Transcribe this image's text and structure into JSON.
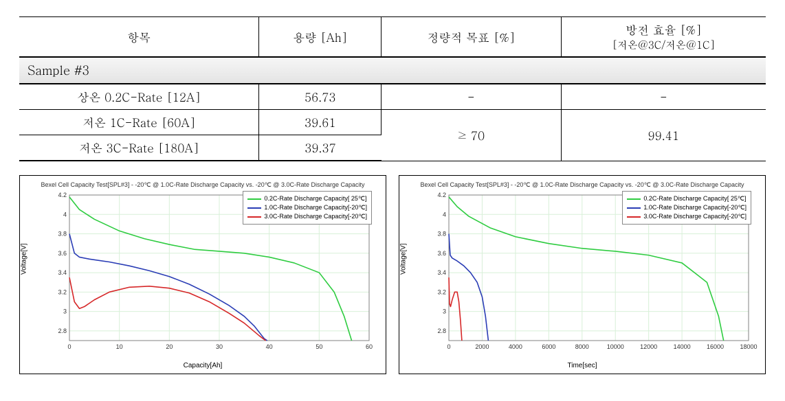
{
  "table": {
    "title": "Sample #3",
    "headers": {
      "item": "항목",
      "capacity": "용량 [Ah]",
      "target": "정량적 목표 [%]",
      "eff": "방전 효율 [%]",
      "eff_sub": "[저온@3C/저온@1C]"
    },
    "rows": [
      {
        "item": "상온 0.2C-Rate [12A]",
        "capacity": "56.73",
        "target": "-",
        "eff": "-"
      },
      {
        "item": "저온 1C-Rate [60A]",
        "capacity": "39.61"
      },
      {
        "item": "저온 3C-Rate [180A]",
        "capacity": "39.37"
      }
    ],
    "merged_target": "≥ 70",
    "merged_eff": "99.41"
  },
  "chart_common": {
    "title": "Bexel Cell Capacity Test[SPL#3] - -20℃ @ 1.0C-Rate Discharge Capacity vs. -20℃ @ 3.0C-Rate Discharge Capacity",
    "title_fontsize": 9,
    "ylabel": "Voltage[V]",
    "ylim": [
      2.7,
      4.2
    ],
    "yticks": [
      2.8,
      3.0,
      3.2,
      3.4,
      3.6,
      3.8,
      4.0,
      4.2
    ],
    "grid_color": "#d8f0d8",
    "border_color": "#808080",
    "background_color": "#ffffff",
    "line_width": 1.6,
    "legend_items": [
      {
        "label": "0.2C-Rate Discharge Capacity[ 25℃]",
        "color": "#2ecc40"
      },
      {
        "label": "1.0C-Rate Discharge Capacity[-20℃]",
        "color": "#2a3db5"
      },
      {
        "label": "3.0C-Rate Discharge Capacity[-20℃]",
        "color": "#d62728"
      }
    ]
  },
  "chart_left": {
    "xlabel": "Capacity[Ah]",
    "xlim": [
      0,
      60
    ],
    "xticks": [
      0,
      10,
      20,
      30,
      40,
      50,
      60
    ],
    "series": [
      {
        "color": "#2ecc40",
        "points": [
          [
            0,
            4.18
          ],
          [
            2,
            4.05
          ],
          [
            5,
            3.95
          ],
          [
            10,
            3.83
          ],
          [
            15,
            3.75
          ],
          [
            20,
            3.69
          ],
          [
            25,
            3.64
          ],
          [
            30,
            3.62
          ],
          [
            35,
            3.6
          ],
          [
            40,
            3.56
          ],
          [
            45,
            3.5
          ],
          [
            50,
            3.4
          ],
          [
            53,
            3.2
          ],
          [
            55,
            2.95
          ],
          [
            56.5,
            2.7
          ]
        ]
      },
      {
        "color": "#2a3db5",
        "points": [
          [
            0,
            3.8
          ],
          [
            1,
            3.6
          ],
          [
            2,
            3.56
          ],
          [
            4,
            3.54
          ],
          [
            8,
            3.51
          ],
          [
            12,
            3.47
          ],
          [
            16,
            3.42
          ],
          [
            20,
            3.36
          ],
          [
            24,
            3.28
          ],
          [
            28,
            3.18
          ],
          [
            32,
            3.06
          ],
          [
            35,
            2.95
          ],
          [
            37,
            2.85
          ],
          [
            39,
            2.72
          ],
          [
            39.6,
            2.7
          ]
        ]
      },
      {
        "color": "#d62728",
        "points": [
          [
            0,
            3.35
          ],
          [
            1,
            3.1
          ],
          [
            2,
            3.03
          ],
          [
            3,
            3.05
          ],
          [
            5,
            3.12
          ],
          [
            8,
            3.2
          ],
          [
            12,
            3.25
          ],
          [
            16,
            3.26
          ],
          [
            20,
            3.24
          ],
          [
            24,
            3.19
          ],
          [
            28,
            3.1
          ],
          [
            32,
            2.98
          ],
          [
            35,
            2.88
          ],
          [
            38,
            2.75
          ],
          [
            39.3,
            2.7
          ]
        ]
      }
    ]
  },
  "chart_right": {
    "xlabel": "Time[sec]",
    "xlim": [
      0,
      18000
    ],
    "xticks": [
      0,
      2000,
      4000,
      6000,
      8000,
      10000,
      12000,
      14000,
      16000,
      18000
    ],
    "series": [
      {
        "color": "#2ecc40",
        "points": [
          [
            0,
            4.18
          ],
          [
            500,
            4.08
          ],
          [
            1200,
            3.98
          ],
          [
            2500,
            3.86
          ],
          [
            4000,
            3.77
          ],
          [
            6000,
            3.7
          ],
          [
            8000,
            3.65
          ],
          [
            10000,
            3.62
          ],
          [
            12000,
            3.58
          ],
          [
            14000,
            3.5
          ],
          [
            15500,
            3.3
          ],
          [
            16200,
            2.95
          ],
          [
            16500,
            2.7
          ]
        ]
      },
      {
        "color": "#2a3db5",
        "points": [
          [
            0,
            3.8
          ],
          [
            80,
            3.58
          ],
          [
            200,
            3.55
          ],
          [
            500,
            3.52
          ],
          [
            900,
            3.47
          ],
          [
            1300,
            3.4
          ],
          [
            1700,
            3.3
          ],
          [
            2000,
            3.15
          ],
          [
            2200,
            2.95
          ],
          [
            2370,
            2.7
          ]
        ]
      },
      {
        "color": "#d62728",
        "points": [
          [
            0,
            3.35
          ],
          [
            40,
            3.08
          ],
          [
            100,
            3.05
          ],
          [
            200,
            3.12
          ],
          [
            350,
            3.2
          ],
          [
            500,
            3.2
          ],
          [
            600,
            3.1
          ],
          [
            700,
            2.9
          ],
          [
            780,
            2.7
          ]
        ]
      }
    ]
  }
}
